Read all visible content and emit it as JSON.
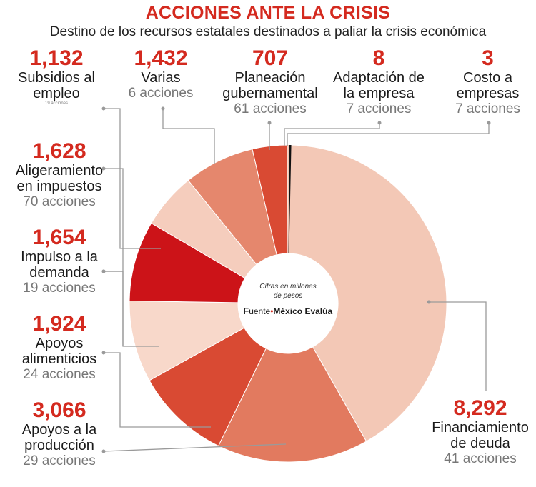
{
  "title": "ACCIONES ANTE LA CRISIS",
  "subtitle": "Destino de los recursos estatales destinados a paliar la crisis económica",
  "center": {
    "note_line1": "Cifras en millones",
    "note_line2": "de pesos",
    "source_label": "Fuente",
    "source_name": "México Evalúa"
  },
  "chart_data": {
    "type": "pie",
    "donut": true,
    "title": "ACCIONES ANTE LA CRISIS",
    "unit": "millones de pesos",
    "slices": [
      {
        "name": "Financiamiento de deuda",
        "value": 8292,
        "value_label": "8,292",
        "actions": "41 acciones",
        "color": "#f3c8b6"
      },
      {
        "name": "Apoyos a la producción",
        "value": 3066,
        "value_label": "3,066",
        "actions": "29 acciones",
        "color": "#e27a5f"
      },
      {
        "name": "Apoyos alimenticios",
        "value": 1924,
        "value_label": "1,924",
        "actions": "24 acciones",
        "color": "#d94a33"
      },
      {
        "name": "Impulso a la demanda",
        "value": 1654,
        "value_label": "1,654",
        "actions": "19 acciones",
        "color": "#f8d8ca"
      },
      {
        "name": "Aligeramiento en impuestos",
        "value": 1628,
        "value_label": "1,628",
        "actions": "70 acciones",
        "color": "#cc1318"
      },
      {
        "name": "Subsidios al empleo",
        "value": 1132,
        "value_label": "1,132",
        "actions": "19 acciones",
        "color": "#f5cdbd"
      },
      {
        "name": "Varias",
        "value": 1432,
        "value_label": "1,432",
        "actions": "6 acciones",
        "color": "#e5876d"
      },
      {
        "name": "Planeación gubernamental",
        "value": 707,
        "value_label": "707",
        "actions": "61 acciones",
        "color": "#d94a33"
      },
      {
        "name": "Adaptación de la empresa",
        "value": 8,
        "value_label": "8",
        "actions": "7 acciones",
        "color": "#f3c8b6"
      },
      {
        "name": "Costo a empresas",
        "value": 3,
        "value_label": "3",
        "actions": "7 acciones",
        "color": "#111111"
      }
    ]
  },
  "labels": {
    "subsidios": {
      "value": "1,132",
      "name1": "Subsidios al",
      "name2": "empleo",
      "actions": "19 acciones"
    },
    "varias": {
      "value": "1,432",
      "name1": "Varias",
      "actions": "6 acciones"
    },
    "planeacion": {
      "value": "707",
      "name1": "Planeación",
      "name2": "gubernamental",
      "actions": "61 acciones"
    },
    "adaptacion": {
      "value": "8",
      "name1": "Adaptación de",
      "name2": "la empresa",
      "actions": "7 acciones"
    },
    "costo": {
      "value": "3",
      "name1": "Costo a",
      "name2": "empresas",
      "actions": "7 acciones"
    },
    "aligeramiento": {
      "value": "1,628",
      "name1": "Aligeramiento",
      "name2": "en impuestos",
      "actions": "70 acciones"
    },
    "impulso": {
      "value": "1,654",
      "name1": "Impulso a la",
      "name2": "demanda",
      "actions": "19 acciones"
    },
    "alimenticios": {
      "value": "1,924",
      "name1": "Apoyos",
      "name2": "alimenticios",
      "actions": "24 acciones"
    },
    "produccion": {
      "value": "3,066",
      "name1": "Apoyos a la",
      "name2": "producción",
      "actions": "29 acciones"
    },
    "financiamiento": {
      "value": "8,292",
      "name1": "Financiamiento",
      "name2": "de deuda",
      "actions": "41 acciones"
    }
  }
}
